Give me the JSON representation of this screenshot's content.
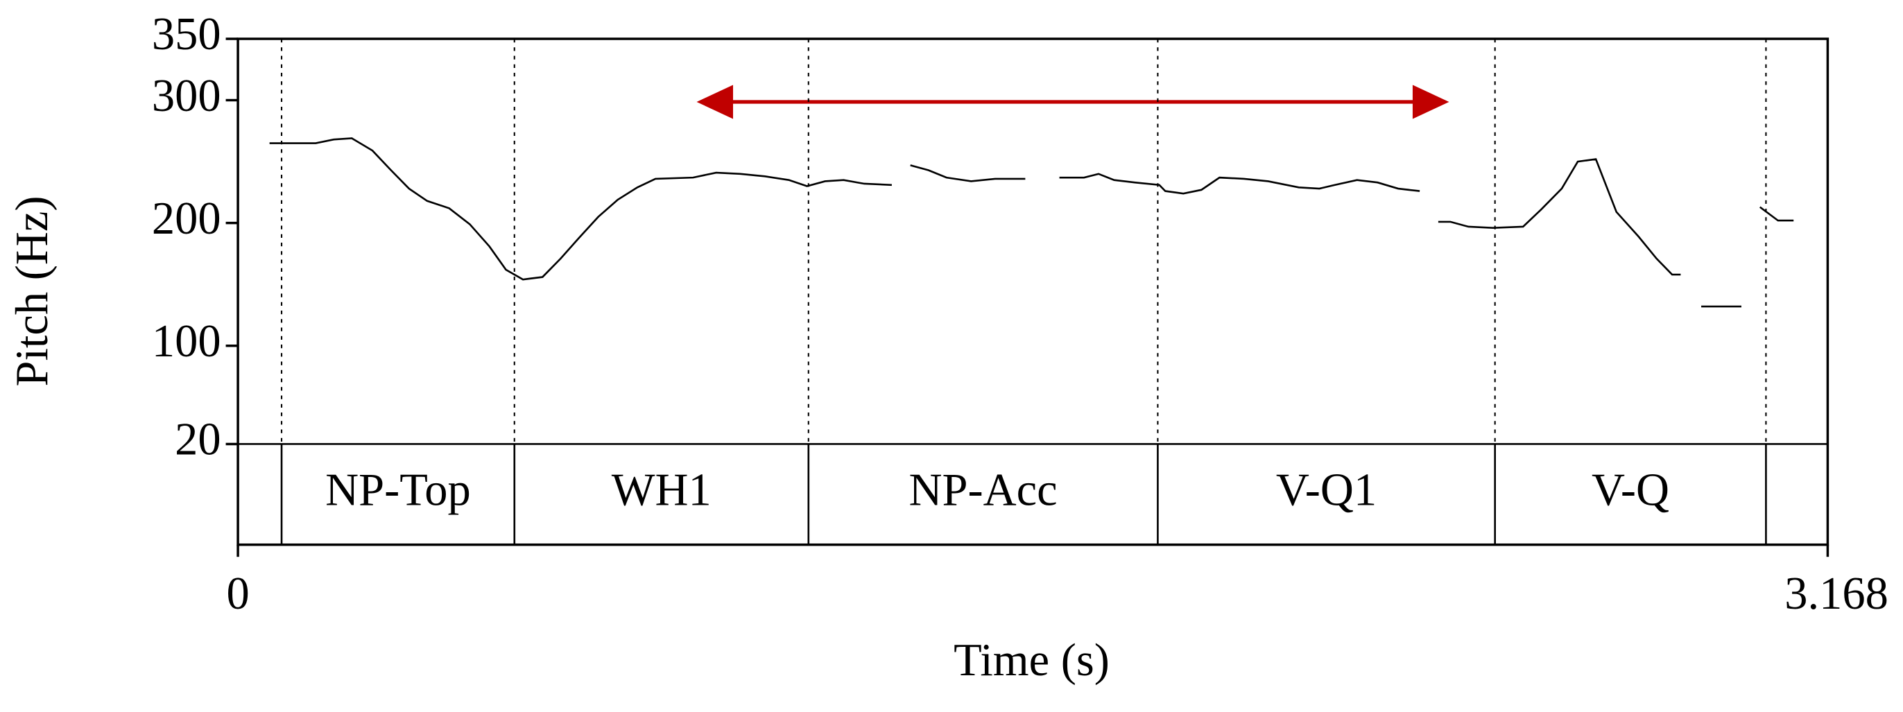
{
  "chart_data": {
    "type": "line",
    "xlabel": "Time (s)",
    "ylabel": "Pitch (Hz)",
    "xlim": [
      0,
      3.168
    ],
    "xticks": [
      0,
      3.168
    ],
    "ylim": [
      20,
      350
    ],
    "yticks": [
      20,
      100,
      200,
      300,
      350
    ],
    "series": [
      {
        "color": "#000000",
        "x": [
          0.063,
          0.155,
          0.191,
          0.227,
          0.268,
          0.305,
          0.341,
          0.377,
          0.421,
          0.462,
          0.501,
          0.534,
          0.568,
          0.607,
          0.643,
          0.68,
          0.718,
          0.757,
          0.796,
          0.832,
          0.907,
          0.953,
          1.001,
          1.05,
          1.098,
          1.134,
          1.17,
          1.207,
          1.248,
          1.303,
          1.32,
          1.34,
          1.376,
          1.412,
          1.461,
          1.509,
          1.569,
          1.62,
          1.637,
          1.686,
          1.715,
          1.746,
          1.787,
          1.836,
          1.848,
          1.884,
          1.92,
          1.956,
          2.005,
          2.053,
          2.114,
          2.155,
          2.186,
          2.23,
          2.271,
          2.312,
          2.355,
          2.37,
          2.392,
          2.416,
          2.452,
          2.501,
          2.561,
          2.597,
          2.638,
          2.67,
          2.706,
          2.747,
          2.791,
          2.827,
          2.858,
          2.875,
          2.89,
          2.916,
          2.996,
          3.02,
          3.033,
          3.069,
          3.1
        ],
        "values": [
          265,
          265,
          268,
          269,
          259,
          243,
          228,
          218,
          212,
          199,
          181,
          162,
          154,
          156,
          171,
          188,
          205,
          219,
          229,
          236,
          237,
          241,
          240,
          238,
          235,
          230,
          234,
          235,
          232,
          231,
          null,
          247,
          243,
          237,
          234,
          236,
          236,
          null,
          237,
          237,
          240,
          235,
          233,
          231,
          226,
          224,
          227,
          237,
          236,
          234,
          229,
          228,
          231,
          235,
          233,
          228,
          226,
          null,
          201,
          201,
          197,
          196,
          197,
          211,
          228,
          250,
          252,
          209,
          189,
          171,
          158,
          158,
          null,
          132,
          132,
          null,
          213,
          202,
          202
        ]
      }
    ],
    "tier": {
      "boundaries": [
        0.087,
        0.551,
        1.137,
        1.833,
        2.505,
        3.045
      ],
      "labels": [
        null,
        "NP-Top",
        "WH1",
        "NP-Acc",
        "V-Q1",
        "V-Q",
        null
      ]
    }
  }
}
